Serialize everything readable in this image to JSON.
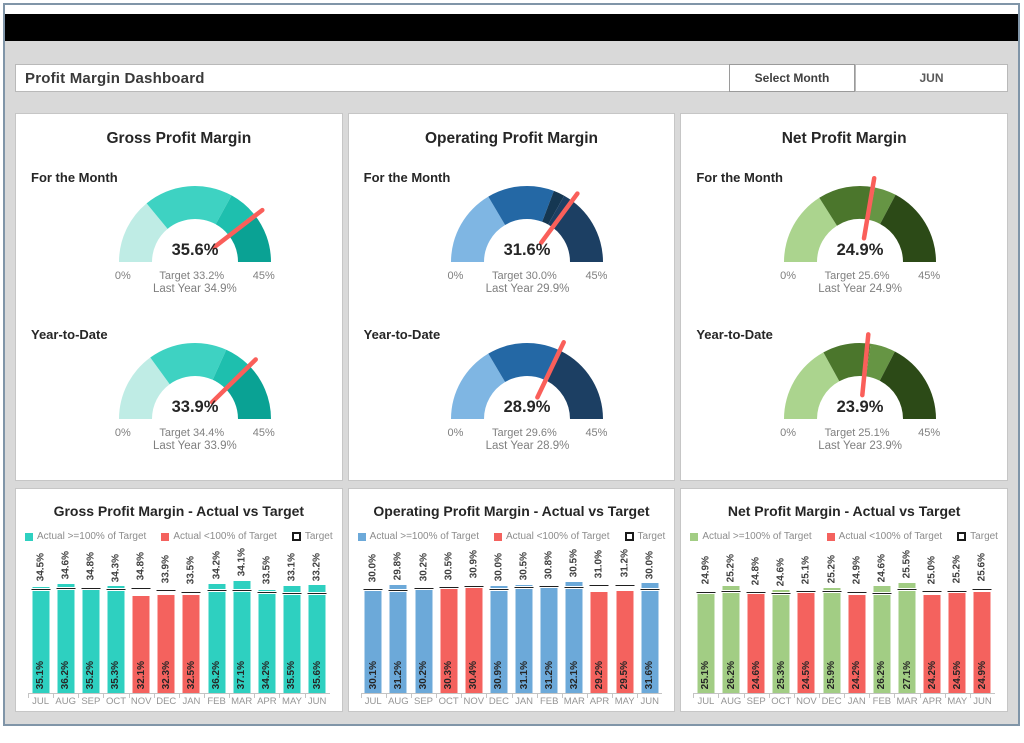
{
  "header": {
    "title": "Profit Margin Dashboard",
    "select_month_label": "Select Month",
    "selected_month": "JUN"
  },
  "colors": {
    "background": "#d9d9d9",
    "needle": "#fa5f5a",
    "bad_red": "#f4625e",
    "gross_accent": "#2ed0c0",
    "operating_accent": "#6ca9d9",
    "net_accent": "#a2cd84"
  },
  "chart_data": [
    {
      "type": "gauge-pair",
      "title": "Gross Profit Margin",
      "gauges": [
        {
          "period": "For the Month",
          "value": 35.6,
          "target": 33.2,
          "last_year": 34.9,
          "min": 0,
          "max": 45,
          "labels": {
            "value": "35.6%",
            "min": "0%",
            "max": "45%",
            "target": "Target 33.2%",
            "last_year": "Last Year 34.9%"
          },
          "segments": [
            {
              "to": 0.28,
              "color": "#bfece5"
            },
            {
              "to": 0.66,
              "color": "#3ed2c2"
            },
            {
              "to": 0.78,
              "color": "#1ebfae"
            },
            {
              "to": 1.0,
              "color": "#0aa294"
            }
          ]
        },
        {
          "period": "Year-to-Date",
          "value": 33.9,
          "target": 34.4,
          "last_year": 33.9,
          "min": 0,
          "max": 45,
          "labels": {
            "value": "33.9%",
            "min": "0%",
            "max": "45%",
            "target": "Target 34.4%",
            "last_year": "Last Year 33.9%"
          },
          "segments": [
            {
              "to": 0.3,
              "color": "#bfece5"
            },
            {
              "to": 0.635,
              "color": "#3ed2c2"
            },
            {
              "to": 0.745,
              "color": "#1ebfae"
            },
            {
              "to": 1.0,
              "color": "#0aa294"
            }
          ]
        }
      ]
    },
    {
      "type": "gauge-pair",
      "title": "Operating Profit Margin",
      "gauges": [
        {
          "period": "For the Month",
          "value": 31.6,
          "target": 30.0,
          "last_year": 29.9,
          "min": 0,
          "max": 45,
          "labels": {
            "value": "31.6%",
            "min": "0%",
            "max": "45%",
            "target": "Target 30.0%",
            "last_year": "Last Year 29.9%"
          },
          "segments": [
            {
              "to": 0.33,
              "color": "#7fb6e3"
            },
            {
              "to": 0.615,
              "color": "#2468a5"
            },
            {
              "to": 0.663,
              "color": "#153752"
            },
            {
              "to": 1.0,
              "color": "#1c3f63"
            }
          ]
        },
        {
          "period": "Year-to-Date",
          "value": 28.9,
          "target": 29.6,
          "last_year": 28.9,
          "min": 0,
          "max": 45,
          "labels": {
            "value": "28.9%",
            "min": "0%",
            "max": "45%",
            "target": "Target 29.6%",
            "last_year": "Last Year 28.9%"
          },
          "segments": [
            {
              "to": 0.33,
              "color": "#7fb6e3"
            },
            {
              "to": 0.633,
              "color": "#2468a5"
            },
            {
              "to": 0.648,
              "color": "#153752"
            },
            {
              "to": 1.0,
              "color": "#1c3f63"
            }
          ]
        }
      ]
    },
    {
      "type": "gauge-pair",
      "title": "Net Profit Margin",
      "gauges": [
        {
          "period": "For the Month",
          "value": 24.9,
          "target": 25.6,
          "last_year": 24.9,
          "min": 0,
          "max": 45,
          "labels": {
            "value": "24.9%",
            "min": "0%",
            "max": "45%",
            "target": "Target 25.6%",
            "last_year": "Last Year 24.9%"
          },
          "segments": [
            {
              "to": 0.32,
              "color": "#abd48e"
            },
            {
              "to": 0.563,
              "color": "#4b762c"
            },
            {
              "to": 0.655,
              "color": "#669544"
            },
            {
              "to": 1.0,
              "color": "#2c4a17"
            }
          ]
        },
        {
          "period": "Year-to-Date",
          "value": 23.9,
          "target": 25.1,
          "last_year": 23.9,
          "min": 0,
          "max": 45,
          "labels": {
            "value": "23.9%",
            "min": "0%",
            "max": "45%",
            "target": "Target 25.1%",
            "last_year": "Last Year 23.9%"
          },
          "segments": [
            {
              "to": 0.34,
              "color": "#abd48e"
            },
            {
              "to": 0.545,
              "color": "#4b762c"
            },
            {
              "to": 0.652,
              "color": "#669544"
            },
            {
              "to": 1.0,
              "color": "#2c4a17"
            }
          ]
        }
      ]
    },
    {
      "type": "bar",
      "title": "Gross Profit Margin - Actual vs Target",
      "legend": [
        "Actual >=100% of Target",
        "Actual <100% of Target",
        "Target"
      ],
      "categories": [
        "JUL",
        "AUG",
        "SEP",
        "OCT",
        "NOV",
        "DEC",
        "JAN",
        "FEB",
        "MAR",
        "APR",
        "MAY",
        "JUN"
      ],
      "series": [
        {
          "name": "Target",
          "values": [
            34.5,
            34.6,
            34.8,
            34.3,
            34.8,
            33.9,
            33.5,
            34.2,
            34.1,
            33.5,
            33.1,
            33.2
          ]
        },
        {
          "name": "Actual",
          "values": [
            35.1,
            36.2,
            35.2,
            35.3,
            32.1,
            32.3,
            32.5,
            36.2,
            37.1,
            34.2,
            35.5,
            35.6
          ]
        }
      ],
      "colors": {
        "ok": "#2ed0c0",
        "bad": "#f4625e"
      },
      "ylim": [
        0,
        39
      ]
    },
    {
      "type": "bar",
      "title": "Operating Profit Margin - Actual vs Target",
      "legend": [
        "Actual >=100% of Target",
        "Actual <100% of Target",
        "Target"
      ],
      "categories": [
        "JUL",
        "AUG",
        "SEP",
        "OCT",
        "NOV",
        "DEC",
        "JAN",
        "FEB",
        "MAR",
        "APR",
        "MAY",
        "JUN"
      ],
      "series": [
        {
          "name": "Target",
          "values": [
            30.0,
            29.8,
            30.2,
            30.5,
            30.9,
            30.0,
            30.5,
            30.8,
            30.5,
            31.0,
            31.2,
            30.0
          ]
        },
        {
          "name": "Actual",
          "values": [
            30.1,
            31.2,
            30.2,
            30.3,
            30.4,
            30.9,
            31.1,
            31.2,
            32.1,
            29.2,
            29.5,
            31.6
          ]
        }
      ],
      "colors": {
        "ok": "#6ca9d9",
        "bad": "#f4625e"
      },
      "ylim": [
        0,
        34
      ]
    },
    {
      "type": "bar",
      "title": "Net Profit Margin - Actual vs Target",
      "legend": [
        "Actual >=100% of Target",
        "Actual <100% of Target",
        "Target"
      ],
      "categories": [
        "JUL",
        "AUG",
        "SEP",
        "OCT",
        "NOV",
        "DEC",
        "JAN",
        "FEB",
        "MAR",
        "APR",
        "MAY",
        "JUN"
      ],
      "series": [
        {
          "name": "Target",
          "values": [
            24.9,
            25.2,
            24.8,
            24.6,
            25.1,
            25.2,
            24.9,
            24.6,
            25.5,
            25.0,
            25.2,
            25.6
          ]
        },
        {
          "name": "Actual",
          "values": [
            25.1,
            26.2,
            24.6,
            25.3,
            24.5,
            25.9,
            24.2,
            26.2,
            27.1,
            24.2,
            24.5,
            24.9
          ]
        }
      ],
      "colors": {
        "ok": "#a2cd84",
        "bad": "#f4625e"
      },
      "ylim": [
        0,
        29
      ]
    }
  ]
}
